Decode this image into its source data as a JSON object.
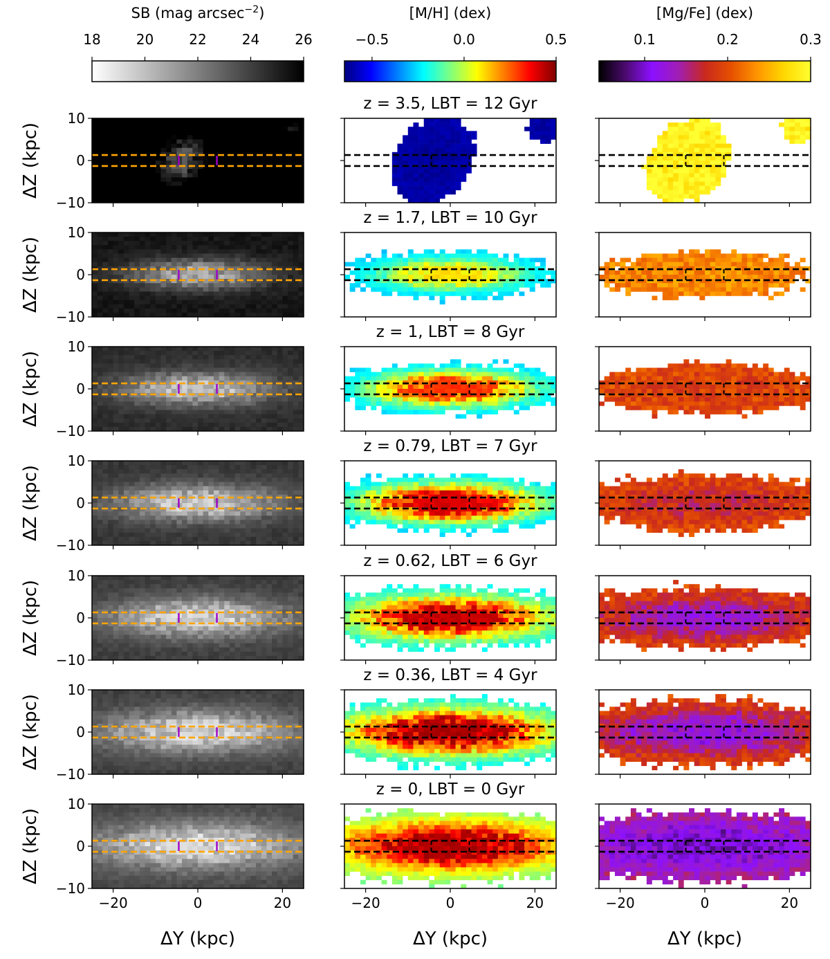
{
  "figure": {
    "x_label": "ΔY (kpc)",
    "y_label": "ΔZ (kpc)",
    "columns": [
      {
        "key": "sb",
        "cbar_label": "SB (mag arcsec",
        "cbar_label_sup": "−2",
        "cbar_label_end": ")",
        "ticks": [
          "18",
          "20",
          "22",
          "24",
          "26"
        ],
        "tick_values": [
          18,
          20,
          22,
          24,
          26
        ],
        "range": [
          18,
          26
        ],
        "colormap": "grey-reversed",
        "stops": [
          "#ffffff",
          "#000000"
        ],
        "guide_color": "#ffa500",
        "marker_color": "#a000c8"
      },
      {
        "key": "mh",
        "cbar_label": "[M/H] (dex)",
        "cbar_label_sup": "",
        "cbar_label_end": "",
        "ticks": [
          "−0.5",
          "0.0",
          "0.5"
        ],
        "tick_values": [
          -0.5,
          0.0,
          0.5
        ],
        "range": [
          -0.65,
          0.5
        ],
        "colormap": "jet",
        "stops": [
          "#00007f",
          "#0000ff",
          "#007fff",
          "#00ffff",
          "#7fff7f",
          "#ffff00",
          "#ff7f00",
          "#ff0000",
          "#7f0000"
        ],
        "guide_color": "#000000"
      },
      {
        "key": "mgfe",
        "cbar_label": "[Mg/Fe] (dex)",
        "cbar_label_sup": "",
        "cbar_label_end": "",
        "ticks": [
          "0.1",
          "0.2",
          "0.3"
        ],
        "tick_values": [
          0.1,
          0.2,
          0.3
        ],
        "range": [
          0.045,
          0.3
        ],
        "colormap": "gnuplot",
        "stops": [
          "#000000",
          "#4b0a6e",
          "#8c10ff",
          "#a01eb4",
          "#c8281e",
          "#e65000",
          "#ff9600",
          "#ffd800",
          "#ffff32"
        ],
        "guide_color": "#000000"
      }
    ]
  },
  "chart_data": {
    "type": "heatmap",
    "xlim": [
      -25,
      25
    ],
    "ylim": [
      -10,
      10
    ],
    "xticks": [
      -20,
      0,
      20
    ],
    "yticks": [
      -10,
      0,
      10
    ],
    "guide_lines_z": [
      -1.3,
      1.3
    ],
    "bar_markers_y": [
      -4.5,
      4.5
    ],
    "rows": [
      {
        "title": "z = 3.5, LBT = 12 Gyr",
        "sb_peak": 23.0,
        "mh_center": -0.62,
        "mh_edge": -0.6,
        "mgfe_center": 0.29,
        "mgfe_edge": 0.29
      },
      {
        "title": "z = 1.7, LBT = 10 Gyr",
        "sb_peak": 20.0,
        "mh_center": 0.1,
        "mh_edge": -0.3,
        "mgfe_center": 0.23,
        "mgfe_edge": 0.23
      },
      {
        "title": "z = 1, LBT = 8 Gyr",
        "sb_peak": 19.3,
        "mh_center": 0.3,
        "mh_edge": -0.3,
        "mgfe_center": 0.19,
        "mgfe_edge": 0.2
      },
      {
        "title": "z = 0.79, LBT = 7 Gyr",
        "sb_peak": 19.0,
        "mh_center": 0.4,
        "mh_edge": -0.3,
        "mgfe_center": 0.17,
        "mgfe_edge": 0.2
      },
      {
        "title": "z = 0.62, LBT = 6 Gyr",
        "sb_peak": 18.8,
        "mh_center": 0.42,
        "mh_edge": -0.25,
        "mgfe_center": 0.13,
        "mgfe_edge": 0.2
      },
      {
        "title": "z = 0.36, LBT = 4 Gyr",
        "sb_peak": 18.7,
        "mh_center": 0.45,
        "mh_edge": -0.25,
        "mgfe_center": 0.12,
        "mgfe_edge": 0.2
      },
      {
        "title": "z = 0, LBT = 0 Gyr",
        "sb_peak": 18.5,
        "mh_center": 0.45,
        "mh_edge": -0.1,
        "mgfe_center": 0.1,
        "mgfe_edge": 0.15
      }
    ]
  }
}
